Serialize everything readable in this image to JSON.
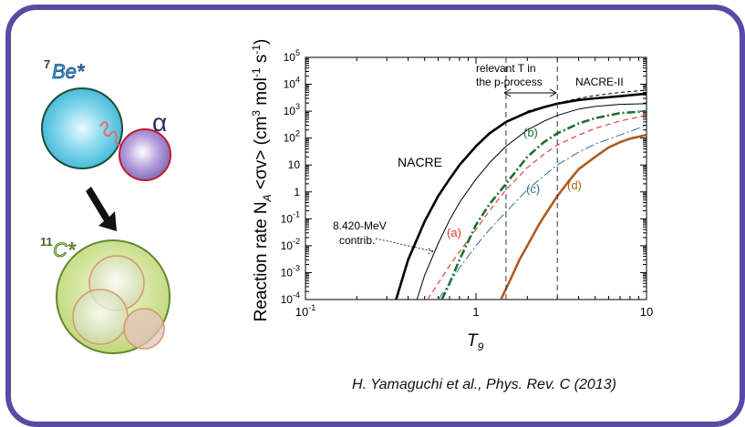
{
  "nuclei": {
    "be7": {
      "label": "Be*",
      "mass": "7"
    },
    "alpha": {
      "label": "α"
    },
    "c11": {
      "label": "C*",
      "mass": "11"
    },
    "colors": {
      "be7_fill": "#5cc6e0",
      "be7_edge": "#1c4d3a",
      "alpha_fill": "#9a84cf",
      "alpha_edge": "#c21a2c",
      "c11_fill": "#c3dc7e",
      "c11_edge": "#5f8a2e",
      "spring": "#e36b6b"
    }
  },
  "citation": "H. Yamaguchi et al., Phys. Rev. C (2013)",
  "chart_data": {
    "type": "line",
    "xlabel": "T",
    "xlabel_sub": "9",
    "ylabel": "Reaction rate N",
    "ylabel_sub": "A",
    "ylabel_rest": "<σv> (cm",
    "ylabel_unit_tail": "mol",
    "ylabel_unit_end": "s",
    "ylabel_sup1": "3",
    "ylabel_sup2": "-1",
    "ylabel_sup3": "-1",
    "x_scale": "log",
    "y_scale": "log",
    "xlim": [
      0.1,
      10
    ],
    "ylim": [
      0.0001,
      100000
    ],
    "x_ticks": [
      {
        "value": 0.1,
        "base": "10",
        "exp": "-1"
      },
      {
        "value": 1,
        "base": "1",
        "exp": ""
      },
      {
        "value": 10,
        "base": "10",
        "exp": ""
      }
    ],
    "y_ticks": [
      {
        "value": 0.0001,
        "base": "10",
        "exp": "-4"
      },
      {
        "value": 0.001,
        "base": "10",
        "exp": "-3"
      },
      {
        "value": 0.01,
        "base": "10",
        "exp": "-2"
      },
      {
        "value": 0.1,
        "base": "10",
        "exp": "-1"
      },
      {
        "value": 1,
        "base": "1",
        "exp": ""
      },
      {
        "value": 10,
        "base": "10",
        "exp": ""
      },
      {
        "value": 100,
        "base": "10",
        "exp": "2"
      },
      {
        "value": 1000,
        "base": "10",
        "exp": "3"
      },
      {
        "value": 10000,
        "base": "10",
        "exp": "4"
      },
      {
        "value": 100000,
        "base": "10",
        "exp": "5"
      }
    ],
    "vlines": [
      1.5,
      3.0
    ],
    "window_text_1": "relevant T in",
    "window_text_2": "the  p-process",
    "contrib_text_1": "8.420-MeV",
    "contrib_text_2": "contrib.",
    "series": [
      {
        "name": "NACRE",
        "color": "#000000",
        "width": 2.6,
        "dash": "",
        "x": [
          0.34,
          0.4,
          0.5,
          0.6,
          0.7,
          0.8,
          1.0,
          1.2,
          1.5,
          2.0,
          2.5,
          3.0,
          4.0,
          5.0,
          7.0,
          10.0
        ],
        "y": [
          0.0001,
          0.003,
          0.08,
          0.7,
          3,
          10,
          50,
          150,
          400,
          900,
          1400,
          1900,
          2600,
          3000,
          3600,
          4500
        ]
      },
      {
        "name": "NACRE-II",
        "color": "#000000",
        "width": 1.0,
        "dash": "",
        "x": [
          0.45,
          0.5,
          0.6,
          0.7,
          0.8,
          1.0,
          1.2,
          1.5,
          2.0,
          2.5,
          3.0,
          4.0,
          5.0,
          7.0,
          10.0
        ],
        "y": [
          0.0001,
          0.0008,
          0.012,
          0.09,
          0.4,
          3,
          12,
          50,
          200,
          420,
          700,
          1200,
          1500,
          1800,
          1900
        ]
      },
      {
        "name": "",
        "color": "#000000",
        "width": 1.0,
        "dash": "4,3",
        "x": [
          2.0,
          2.5,
          3.0,
          4.0,
          5.0,
          7.0,
          10.0
        ],
        "y": [
          1000,
          1500,
          2000,
          3000,
          3800,
          5000,
          6000
        ]
      },
      {
        "name": "(a)",
        "color": "#e0332b",
        "width": 1.1,
        "dash": "6,4",
        "x": [
          0.52,
          0.6,
          0.7,
          0.8,
          1.0,
          1.2,
          1.5,
          2.0,
          2.5,
          3.0,
          4.0,
          5.0,
          7.0,
          10.0
        ],
        "y": [
          0.0001,
          0.0004,
          0.0018,
          0.006,
          0.04,
          0.2,
          1.2,
          8,
          25,
          55,
          130,
          230,
          430,
          700
        ]
      },
      {
        "name": "(b)",
        "color": "#1f6e2e",
        "width": 2.6,
        "dash": "9,3,2,3",
        "x": [
          0.63,
          0.7,
          0.8,
          1.0,
          1.2,
          1.5,
          2.0,
          2.5,
          3.0,
          4.0,
          5.0,
          7.0,
          10.0
        ],
        "y": [
          0.0001,
          0.0004,
          0.003,
          0.06,
          0.35,
          2,
          20,
          70,
          150,
          350,
          550,
          850,
          1000
        ]
      },
      {
        "name": "(c)",
        "color": "#2c6e99",
        "width": 1.0,
        "dash": "10,3,2,3",
        "x": [
          0.6,
          0.7,
          0.8,
          1.0,
          1.2,
          1.5,
          2.0,
          2.5,
          3.0,
          4.0,
          5.0,
          7.0,
          10.0
        ],
        "y": [
          0.0001,
          0.0004,
          0.0015,
          0.01,
          0.04,
          0.18,
          1.2,
          4,
          10,
          30,
          60,
          130,
          300
        ]
      },
      {
        "name": "(d)",
        "color": "#b05a1e",
        "width": 2.6,
        "dash": "",
        "x": [
          1.4,
          1.6,
          1.8,
          2.0,
          2.3,
          2.5,
          3.0,
          3.5,
          4.0,
          5.0,
          6.0,
          7.0,
          8.0,
          10.0
        ],
        "y": [
          0.0001,
          0.0006,
          0.003,
          0.01,
          0.05,
          0.12,
          0.7,
          2.5,
          7,
          20,
          45,
          70,
          95,
          130
        ]
      }
    ],
    "curve_labels": [
      {
        "text": "NACRE",
        "series": "NACRE"
      },
      {
        "text": "NACRE-II",
        "series": "NACRE-II"
      },
      {
        "text": "(a)",
        "series": "(a)"
      },
      {
        "text": "(b)",
        "series": "(b)"
      },
      {
        "text": "(c)",
        "series": "(c)"
      },
      {
        "text": "(d)",
        "series": "(d)"
      }
    ]
  }
}
